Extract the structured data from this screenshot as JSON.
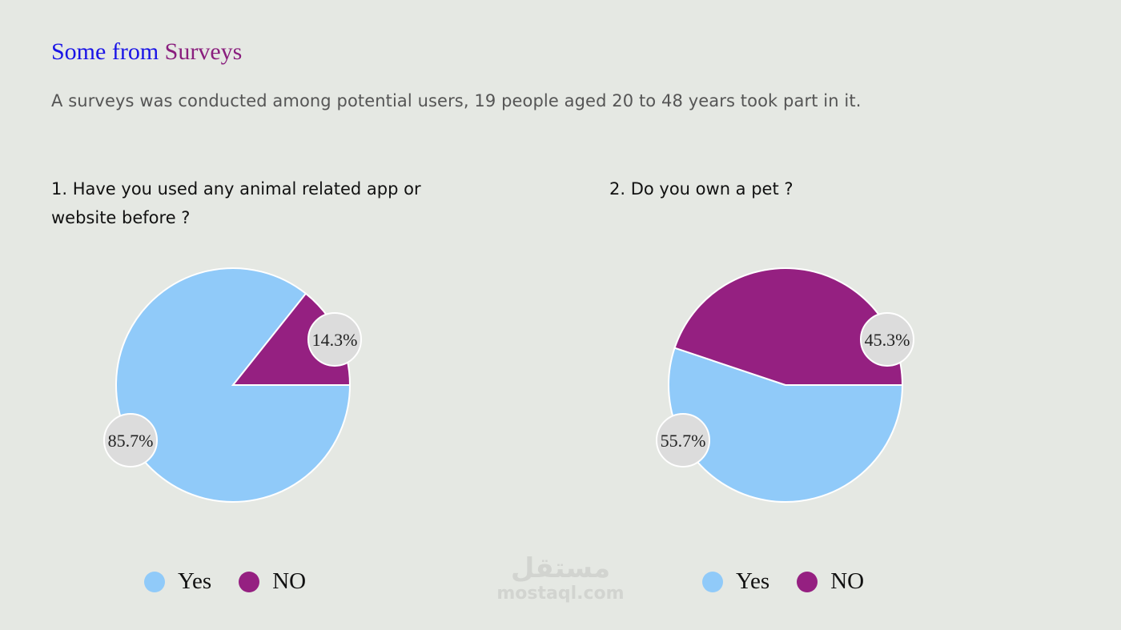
{
  "header": {
    "title_part1": "Some from",
    "title_part2": "Surveys",
    "subtitle": "A surveys was conducted among potential users, 19 people aged 20 to 48 years took part in it."
  },
  "colors": {
    "yes": "#90caf9",
    "no": "#952081",
    "label_bubble": "#dcdcdc",
    "background": "#e5e8e3"
  },
  "legend": {
    "yes": "Yes",
    "no": "NO"
  },
  "watermark": {
    "arabic": "مستقل",
    "latin": "mostaql.com"
  },
  "chart_data": [
    {
      "type": "pie",
      "title": "1. Have you used any animal related app or website before ?",
      "slices": [
        {
          "name": "Yes",
          "value": 85.7,
          "label": "85.7%"
        },
        {
          "name": "NO",
          "value": 14.3,
          "label": "14.3%"
        }
      ]
    },
    {
      "type": "pie",
      "title": "2. Do you own a pet ?",
      "slices": [
        {
          "name": "Yes",
          "value": 55.7,
          "label": "55.7%"
        },
        {
          "name": "NO",
          "value": 45.3,
          "label": "45.3%"
        }
      ]
    }
  ]
}
